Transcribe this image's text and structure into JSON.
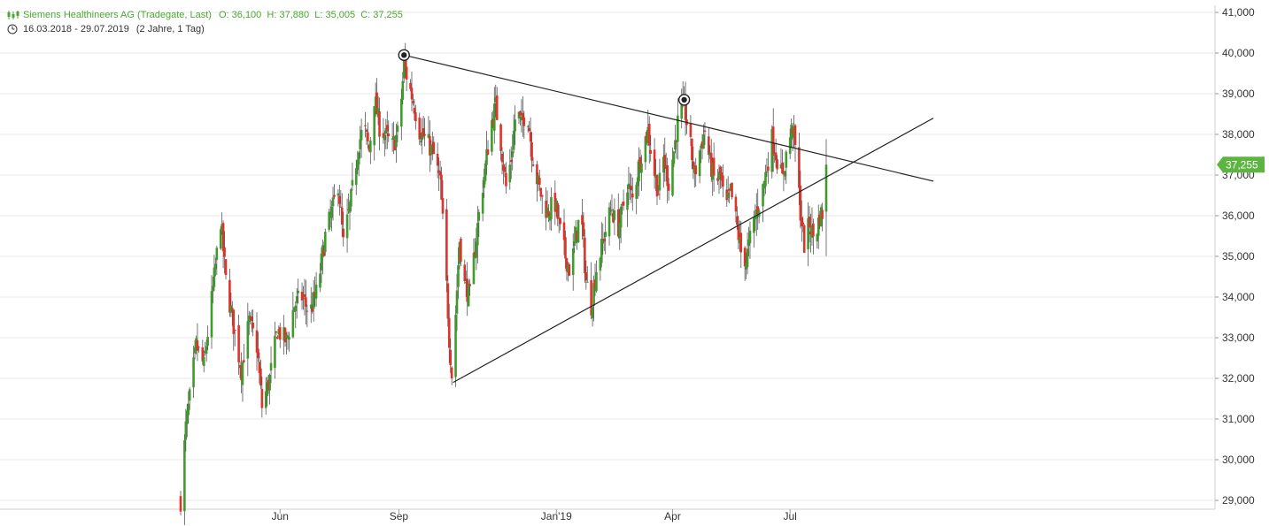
{
  "header": {
    "instrument": "Siemens Healthineers AG (Tradegate, Last)",
    "ohlc": "O: 36,100  H: 37,880  L: 35,005  C: 37,255",
    "range": "16.03.2018 - 29.07.2019",
    "period": "(2 Jahre, 1 Tag)"
  },
  "colors": {
    "up": "#3f9b2c",
    "down": "#e0332a",
    "wick": "#555555",
    "grid": "#e9e9e9",
    "trend": "#222222",
    "last_badge": "#5cb540"
  },
  "chart_data": {
    "type": "candlestick",
    "title": "Siemens Healthineers AG (Tradegate, Last)",
    "x_axis": {
      "type": "date",
      "range": [
        "2018-03-16",
        "2019-07-29"
      ],
      "tick_labels": [
        "Jun",
        "Sep",
        "Jan'19",
        "Apr",
        "Jul"
      ]
    },
    "y_axis": {
      "position": "right",
      "ylim": [
        28.8,
        41.2
      ],
      "ticks": [
        {
          "value": 29,
          "label": "29,000"
        },
        {
          "value": 30,
          "label": "30,000"
        },
        {
          "value": 31,
          "label": "31,000"
        },
        {
          "value": 32,
          "label": "32,000"
        },
        {
          "value": 33,
          "label": "33,000"
        },
        {
          "value": 34,
          "label": "34,000"
        },
        {
          "value": 35,
          "label": "35,000"
        },
        {
          "value": 36,
          "label": "36,000"
        },
        {
          "value": 37,
          "label": "37,000"
        },
        {
          "value": 38,
          "label": "38,000"
        },
        {
          "value": 39,
          "label": "39,000"
        },
        {
          "value": 40,
          "label": "40,000"
        },
        {
          "value": 41,
          "label": "41,000"
        }
      ]
    },
    "grid": true,
    "last": {
      "value": 37.255,
      "label": "37,255"
    },
    "ohlc_last": {
      "open": 36.1,
      "high": 37.88,
      "low": 35.005,
      "close": 37.255
    },
    "price_path": [
      [
        "2018-03-16",
        29.0
      ],
      [
        "2018-03-20",
        30.8
      ],
      [
        "2018-03-23",
        31.5
      ],
      [
        "2018-03-28",
        32.8
      ],
      [
        "2018-04-03",
        32.3
      ],
      [
        "2018-04-10",
        34.2
      ],
      [
        "2018-04-16",
        35.9
      ],
      [
        "2018-04-20",
        34.4
      ],
      [
        "2018-04-26",
        33.3
      ],
      [
        "2018-05-02",
        32.2
      ],
      [
        "2018-05-08",
        33.4
      ],
      [
        "2018-05-14",
        32.8
      ],
      [
        "2018-05-18",
        31.3
      ],
      [
        "2018-05-24",
        32.0
      ],
      [
        "2018-05-30",
        33.2
      ],
      [
        "2018-06-06",
        32.9
      ],
      [
        "2018-06-12",
        33.8
      ],
      [
        "2018-06-18",
        34.0
      ],
      [
        "2018-06-24",
        33.6
      ],
      [
        "2018-06-30",
        34.2
      ],
      [
        "2018-07-06",
        35.5
      ],
      [
        "2018-07-12",
        36.2
      ],
      [
        "2018-07-16",
        36.8
      ],
      [
        "2018-07-20",
        35.3
      ],
      [
        "2018-07-26",
        36.4
      ],
      [
        "2018-08-01",
        37.8
      ],
      [
        "2018-08-05",
        38.2
      ],
      [
        "2018-08-09",
        37.6
      ],
      [
        "2018-08-13",
        38.9
      ],
      [
        "2018-08-17",
        38.2
      ],
      [
        "2018-08-23",
        37.9
      ],
      [
        "2018-08-27",
        37.7
      ],
      [
        "2018-09-01",
        38.1
      ],
      [
        "2018-09-05",
        39.7
      ],
      [
        "2018-09-09",
        39.2
      ],
      [
        "2018-09-13",
        38.7
      ],
      [
        "2018-09-17",
        38.1
      ],
      [
        "2018-09-21",
        37.9
      ],
      [
        "2018-09-25",
        37.7
      ],
      [
        "2018-09-29",
        37.4
      ],
      [
        "2018-10-03",
        36.8
      ],
      [
        "2018-10-07",
        34.9
      ],
      [
        "2018-10-10",
        33.0
      ],
      [
        "2018-10-12",
        32.1
      ],
      [
        "2018-10-15",
        33.6
      ],
      [
        "2018-10-18",
        35.4
      ],
      [
        "2018-10-22",
        34.3
      ],
      [
        "2018-10-26",
        34.0
      ],
      [
        "2018-10-30",
        35.2
      ],
      [
        "2018-11-03",
        36.3
      ],
      [
        "2018-11-07",
        37.2
      ],
      [
        "2018-11-11",
        38.2
      ],
      [
        "2018-11-15",
        38.7
      ],
      [
        "2018-11-19",
        37.8
      ],
      [
        "2018-11-23",
        36.7
      ],
      [
        "2018-11-27",
        37.4
      ],
      [
        "2018-12-01",
        38.7
      ],
      [
        "2018-12-05",
        38.2
      ],
      [
        "2018-12-09",
        38.7
      ],
      [
        "2018-12-13",
        37.6
      ],
      [
        "2018-12-17",
        36.9
      ],
      [
        "2018-12-21",
        36.4
      ],
      [
        "2018-12-25",
        36.1
      ],
      [
        "2018-12-31",
        36.3
      ],
      [
        "2019-01-04",
        35.6
      ],
      [
        "2019-01-08",
        35.0
      ],
      [
        "2019-01-12",
        34.6
      ],
      [
        "2019-01-16",
        35.5
      ],
      [
        "2019-01-20",
        36.1
      ],
      [
        "2019-01-24",
        34.4
      ],
      [
        "2019-01-28",
        33.8
      ],
      [
        "2019-02-01",
        34.7
      ],
      [
        "2019-02-05",
        35.2
      ],
      [
        "2019-02-09",
        35.8
      ],
      [
        "2019-02-13",
        36.2
      ],
      [
        "2019-02-17",
        35.6
      ],
      [
        "2019-02-21",
        36.1
      ],
      [
        "2019-02-25",
        36.8
      ],
      [
        "2019-03-01",
        36.4
      ],
      [
        "2019-03-05",
        37.1
      ],
      [
        "2019-03-09",
        37.7
      ],
      [
        "2019-03-13",
        38.1
      ],
      [
        "2019-03-17",
        37.2
      ],
      [
        "2019-03-21",
        36.6
      ],
      [
        "2019-03-25",
        37.4
      ],
      [
        "2019-03-29",
        36.8
      ],
      [
        "2019-04-02",
        37.6
      ],
      [
        "2019-04-06",
        38.5
      ],
      [
        "2019-04-10",
        38.7
      ],
      [
        "2019-04-14",
        37.9
      ],
      [
        "2019-04-18",
        37.0
      ],
      [
        "2019-04-22",
        37.6
      ],
      [
        "2019-04-26",
        38.1
      ],
      [
        "2019-04-30",
        37.3
      ],
      [
        "2019-05-04",
        36.8
      ],
      [
        "2019-05-08",
        37.0
      ],
      [
        "2019-05-12",
        36.1
      ],
      [
        "2019-05-16",
        36.6
      ],
      [
        "2019-05-20",
        35.9
      ],
      [
        "2019-05-24",
        35.1
      ],
      [
        "2019-05-28",
        34.9
      ],
      [
        "2019-06-01",
        35.6
      ],
      [
        "2019-06-05",
        36.1
      ],
      [
        "2019-06-09",
        36.5
      ],
      [
        "2019-06-13",
        37.2
      ],
      [
        "2019-06-17",
        37.9
      ],
      [
        "2019-06-21",
        37.4
      ],
      [
        "2019-06-25",
        36.9
      ],
      [
        "2019-06-29",
        37.7
      ],
      [
        "2019-07-03",
        38.2
      ],
      [
        "2019-07-06",
        37.4
      ],
      [
        "2019-07-09",
        36.1
      ],
      [
        "2019-07-12",
        35.3
      ],
      [
        "2019-07-16",
        35.8
      ],
      [
        "2019-07-20",
        35.4
      ],
      [
        "2019-07-24",
        36.0
      ],
      [
        "2019-07-27",
        36.1
      ],
      [
        "2019-07-29",
        37.255
      ]
    ],
    "trend_lines": [
      {
        "name": "resistance",
        "from": [
          "2018-09-05",
          39.95
        ],
        "to": [
          "2019-10-20",
          36.85
        ],
        "pivots": [
          [
            "2018-09-05",
            39.95
          ],
          [
            "2019-04-10",
            38.85
          ]
        ]
      },
      {
        "name": "support",
        "from": [
          "2018-10-13",
          31.9
        ],
        "to": [
          "2019-10-20",
          38.4
        ]
      }
    ]
  }
}
